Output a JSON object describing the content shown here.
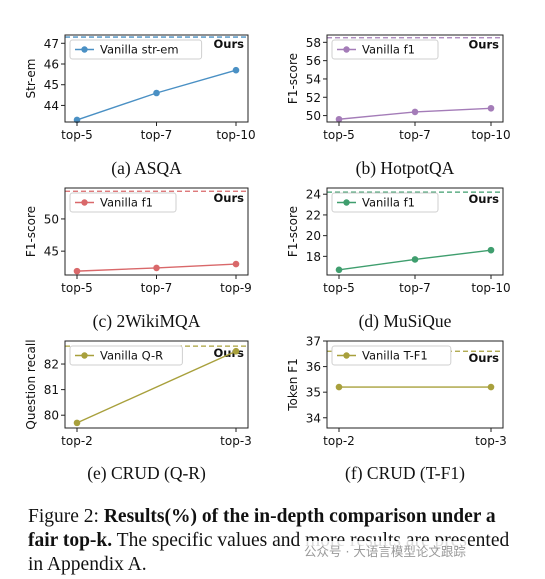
{
  "chart_data": [
    {
      "type": "line",
      "subcaption": "(a) ASQA",
      "ylabel": "Str-em",
      "categories": [
        "top-5",
        "top-7",
        "top-10"
      ],
      "series": [
        {
          "name": "Vanilla str-em",
          "values": [
            43.3,
            44.6,
            45.7
          ],
          "color": "#4a90c4"
        }
      ],
      "reference": {
        "label": "Ours",
        "value": 47.3,
        "color": "#4a90c4"
      },
      "ylim": [
        43.2,
        47.4
      ],
      "yticks": [
        44,
        45,
        46,
        47
      ]
    },
    {
      "type": "line",
      "subcaption": "(b) HotpotQA",
      "ylabel": "F1-score",
      "categories": [
        "top-5",
        "top-7",
        "top-10"
      ],
      "series": [
        {
          "name": "Vanilla f1",
          "values": [
            49.6,
            50.4,
            50.8
          ],
          "color": "#a47cb8"
        }
      ],
      "reference": {
        "label": "Ours",
        "value": 58.5,
        "color": "#a47cb8"
      },
      "ylim": [
        49.3,
        58.8
      ],
      "yticks": [
        50,
        52,
        54,
        56,
        58
      ]
    },
    {
      "type": "line",
      "subcaption": "(c) 2WikiMQA",
      "ylabel": "F1-score",
      "categories": [
        "top-5",
        "top-7",
        "top-9"
      ],
      "series": [
        {
          "name": "Vanilla f1",
          "values": [
            41.9,
            42.4,
            43.0
          ],
          "color": "#d9686a"
        }
      ],
      "reference": {
        "label": "Ours",
        "value": 54.3,
        "color": "#d9686a"
      },
      "ylim": [
        41.3,
        54.8
      ],
      "yticks": [
        45,
        50
      ]
    },
    {
      "type": "line",
      "subcaption": "(d) MuSiQue",
      "ylabel": "F1-score",
      "categories": [
        "top-5",
        "top-7",
        "top-10"
      ],
      "series": [
        {
          "name": "Vanilla f1",
          "values": [
            16.7,
            17.7,
            18.6
          ],
          "color": "#3f9e6e"
        }
      ],
      "reference": {
        "label": "Ours",
        "value": 24.2,
        "color": "#3f9e6e"
      },
      "ylim": [
        16.2,
        24.6
      ],
      "yticks": [
        18,
        20,
        22,
        24
      ]
    },
    {
      "type": "line",
      "subcaption": "(e) CRUD (Q-R)",
      "ylabel": "Question recall",
      "categories": [
        "top-2",
        "top-3"
      ],
      "series": [
        {
          "name": "Vanilla Q-R",
          "values": [
            79.7,
            82.5
          ],
          "color": "#a8a03c"
        }
      ],
      "reference": {
        "label": "Ours",
        "value": 82.7,
        "color": "#a8a03c"
      },
      "ylim": [
        79.5,
        82.9
      ],
      "yticks": [
        80,
        81,
        82
      ]
    },
    {
      "type": "line",
      "subcaption": "(f) CRUD (T-F1)",
      "ylabel": "Token F1",
      "categories": [
        "top-2",
        "top-3"
      ],
      "series": [
        {
          "name": "Vanilla T-F1",
          "values": [
            35.2,
            35.2
          ],
          "color": "#a8a03c"
        }
      ],
      "reference": {
        "label": "Ours",
        "value": 36.6,
        "color": "#a8a03c"
      },
      "ylim": [
        33.6,
        37.0
      ],
      "yticks": [
        34,
        35,
        36,
        37
      ]
    }
  ],
  "caption": {
    "prefix": "Figure 2: ",
    "bold": "Results(%) of the in-depth comparison under a fair top-k.",
    "rest": " The specific values and more results are presented in Appendix A."
  },
  "watermark": "公众号 · 大语言模型论文跟踪"
}
